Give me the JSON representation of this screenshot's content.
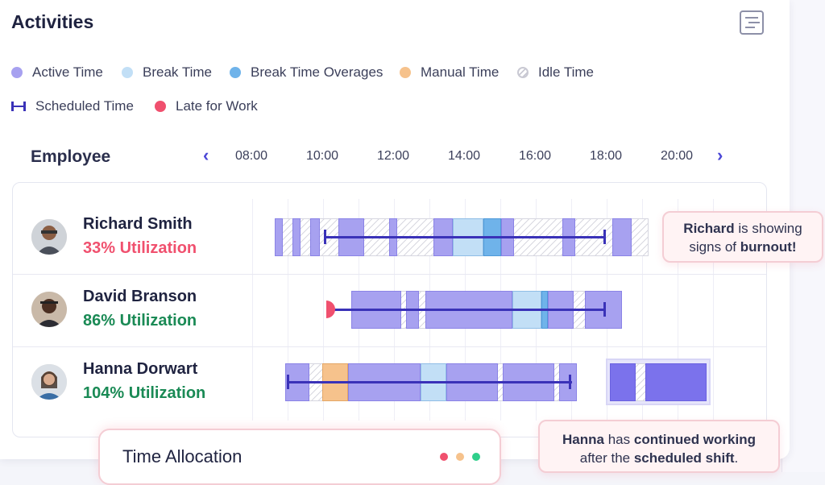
{
  "title": "Activities",
  "legend": {
    "active": {
      "label": "Active Time",
      "color": "#a7a1f0"
    },
    "break": {
      "label": "Break Time",
      "color": "#c2dff6"
    },
    "break_over": {
      "label": "Break Time Overages",
      "color": "#6fb3ea"
    },
    "manual": {
      "label": "Manual Time",
      "color": "#f6c28c"
    },
    "idle": {
      "label": "Idle Time"
    },
    "scheduled": {
      "label": "Scheduled Time",
      "color": "#3a32b8"
    },
    "late": {
      "label": "Late for Work",
      "color": "#f0506e"
    }
  },
  "table": {
    "employee_header": "Employee",
    "prev_icon": "chevron-left-icon",
    "next_icon": "chevron-right-icon",
    "times": [
      "08:00",
      "10:00",
      "12:00",
      "14:00",
      "16:00",
      "18:00",
      "20:00"
    ]
  },
  "employees": [
    {
      "name": "Richard Smith",
      "utilization": "33% Utilization",
      "util_color": "#f0506e"
    },
    {
      "name": "David Branson",
      "utilization": "86% Utilization",
      "util_color": "#1a8a55"
    },
    {
      "name": "Hanna Dorwart",
      "utilization": "104% Utilization",
      "util_color": "#1a8a55"
    }
  ],
  "callouts": {
    "richard": {
      "name": "Richard",
      "pre": " is showing",
      "line2": "signs of ",
      "emph": "burnout!"
    },
    "hanna": {
      "name": "Hanna",
      "mid": " has ",
      "emph1": "continued working",
      "line2": "after the ",
      "emph2": "scheduled shift",
      "end": "."
    }
  },
  "time_allocation": {
    "title": "Time Allocation",
    "dot_colors": [
      "#f0506e",
      "#f6c28c",
      "#2fcf8b"
    ]
  }
}
